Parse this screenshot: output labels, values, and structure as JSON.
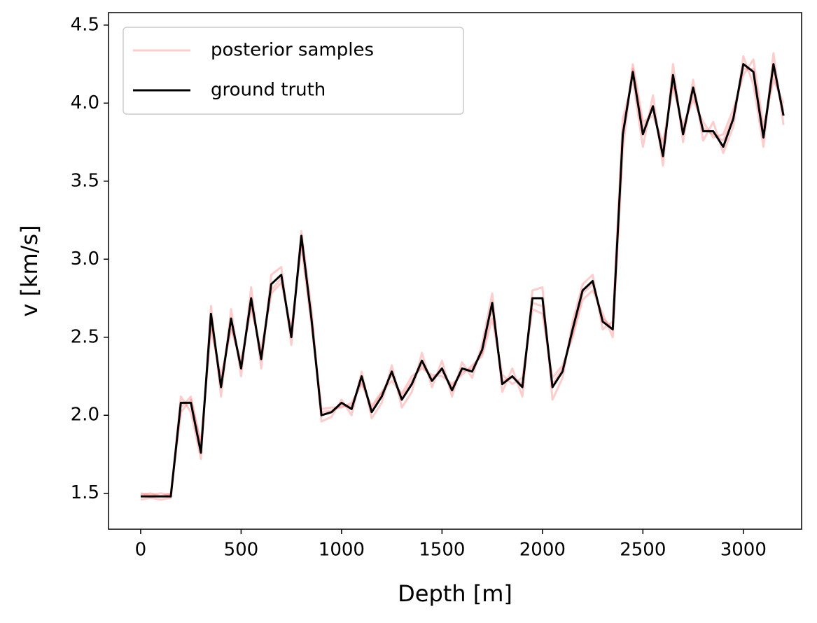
{
  "chart_data": {
    "type": "line",
    "xlabel": "Depth [m]",
    "ylabel": "v [km/s]",
    "x": [
      0,
      50,
      100,
      150,
      200,
      250,
      300,
      350,
      400,
      450,
      500,
      550,
      600,
      650,
      700,
      750,
      800,
      850,
      900,
      950,
      1000,
      1050,
      1100,
      1150,
      1200,
      1250,
      1300,
      1350,
      1400,
      1450,
      1500,
      1550,
      1600,
      1650,
      1700,
      1750,
      1800,
      1850,
      1900,
      1950,
      2000,
      2050,
      2100,
      2150,
      2200,
      2250,
      2300,
      2350,
      2400,
      2450,
      2500,
      2550,
      2600,
      2650,
      2700,
      2750,
      2800,
      2850,
      2900,
      2950,
      3000,
      3050,
      3100,
      3150,
      3200
    ],
    "series": [
      {
        "name": "posterior samples",
        "color": "#ff0000",
        "opacity": 0.2,
        "samples": [
          [
            1.5,
            1.49,
            1.5,
            1.49,
            2.02,
            2.1,
            1.82,
            2.55,
            2.25,
            2.55,
            2.35,
            2.68,
            2.42,
            2.78,
            2.85,
            2.55,
            3.08,
            2.58,
            2.04,
            2.05,
            2.05,
            2.08,
            2.2,
            2.06,
            2.15,
            2.22,
            2.14,
            2.25,
            2.3,
            2.26,
            2.25,
            2.2,
            2.26,
            2.32,
            2.38,
            2.62,
            2.26,
            2.2,
            2.24,
            2.68,
            2.65,
            2.24,
            2.32,
            2.5,
            2.74,
            2.8,
            2.65,
            2.5,
            3.7,
            4.25,
            3.88,
            3.92,
            3.75,
            4.1,
            3.86,
            4.02,
            3.88,
            3.78,
            3.8,
            3.96,
            4.18,
            4.28,
            3.85,
            4.15,
            4.0
          ],
          [
            1.46,
            1.47,
            1.46,
            1.47,
            2.12,
            2.02,
            1.72,
            2.7,
            2.12,
            2.68,
            2.25,
            2.82,
            2.3,
            2.9,
            2.95,
            2.45,
            3.18,
            2.68,
            1.96,
            1.99,
            2.1,
            2.0,
            2.28,
            1.98,
            2.08,
            2.32,
            2.05,
            2.15,
            2.4,
            2.18,
            2.35,
            2.12,
            2.34,
            2.24,
            2.46,
            2.78,
            2.15,
            2.3,
            2.12,
            2.8,
            2.82,
            2.1,
            2.24,
            2.6,
            2.84,
            2.9,
            2.55,
            2.6,
            3.9,
            4.15,
            3.72,
            4.05,
            3.6,
            4.25,
            3.75,
            4.15,
            3.76,
            3.88,
            3.68,
            3.85,
            4.3,
            4.12,
            3.72,
            4.32,
            3.86
          ],
          [
            1.49,
            1.5,
            1.48,
            1.5,
            2.05,
            2.12,
            1.8,
            2.6,
            2.2,
            2.58,
            2.32,
            2.72,
            2.38,
            2.8,
            2.88,
            2.52,
            3.12,
            2.64,
            2.02,
            2.03,
            2.06,
            2.06,
            2.22,
            2.04,
            2.14,
            2.26,
            2.12,
            2.22,
            2.32,
            2.24,
            2.28,
            2.18,
            2.28,
            2.3,
            2.4,
            2.68,
            2.22,
            2.24,
            2.2,
            2.72,
            2.7,
            2.2,
            2.3,
            2.52,
            2.78,
            2.84,
            2.62,
            2.56,
            3.78,
            4.22,
            3.84,
            3.96,
            3.7,
            4.14,
            3.82,
            4.06,
            3.84,
            3.8,
            3.76,
            3.92,
            4.22,
            4.22,
            3.8,
            4.2,
            3.95
          ]
        ]
      },
      {
        "name": "ground truth",
        "color": "#000000",
        "values": [
          1.48,
          1.48,
          1.48,
          1.48,
          2.08,
          2.08,
          1.76,
          2.65,
          2.18,
          2.62,
          2.3,
          2.75,
          2.36,
          2.84,
          2.9,
          2.5,
          3.15,
          2.62,
          2.0,
          2.02,
          2.08,
          2.04,
          2.25,
          2.02,
          2.12,
          2.28,
          2.1,
          2.2,
          2.35,
          2.22,
          2.3,
          2.16,
          2.3,
          2.28,
          2.42,
          2.72,
          2.2,
          2.25,
          2.18,
          2.75,
          2.75,
          2.18,
          2.28,
          2.55,
          2.8,
          2.86,
          2.6,
          2.55,
          3.8,
          4.2,
          3.8,
          3.98,
          3.66,
          4.18,
          3.8,
          4.1,
          3.82,
          3.82,
          3.72,
          3.9,
          4.25,
          4.2,
          3.78,
          4.25,
          3.92
        ]
      }
    ],
    "xlim": [
      -160,
      3290
    ],
    "ylim": [
      1.27,
      4.58
    ],
    "xticks": [
      0,
      500,
      1000,
      1500,
      2000,
      2500,
      3000
    ],
    "yticks": [
      1.5,
      {
        "value": 2,
        "label": "2.0"
      },
      2.5,
      {
        "value": 3,
        "label": "3.0"
      },
      3.5,
      {
        "value": 4,
        "label": "4.0"
      },
      4.5
    ],
    "legend": "upper left"
  }
}
